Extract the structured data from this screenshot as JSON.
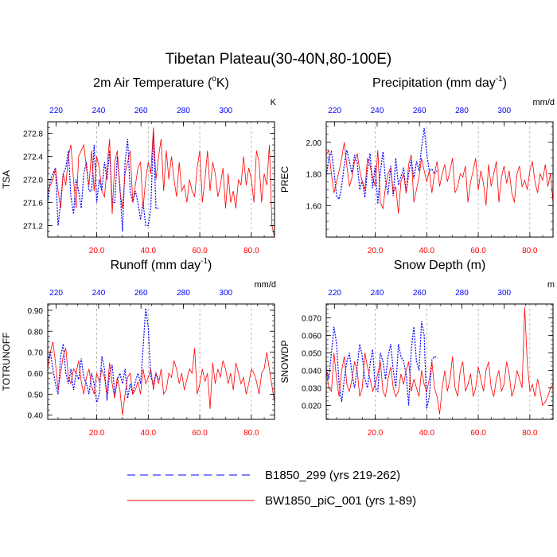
{
  "title": "Tibetan Plateau(30-40N,80-100E)",
  "colors": {
    "series_a": "#0000ff",
    "series_b": "#ff0000",
    "grid": "#aaaaaa"
  },
  "legend": [
    {
      "label": "B1850_299 (yrs 219-262)",
      "style": "dashed",
      "color": "#0000ff"
    },
    {
      "label": "BW1850_piC_001 (yrs 1-89)",
      "style": "solid",
      "color": "#ff0000"
    }
  ],
  "chart_data": [
    {
      "type": "line",
      "title": "2m Air Temperature (",
      "title_sup": "o",
      "title_tail": "K)",
      "ylabel": "TSA",
      "top_unit": "K",
      "ylim": [
        271.0,
        273.0
      ],
      "yticks": [
        "271.2",
        "271.6",
        "272.0",
        "272.4",
        "272.8"
      ],
      "xlim": [
        1,
        89
      ],
      "xticks": [
        "20.0",
        "40.0",
        "60.0",
        "80.0"
      ],
      "top_ticks": [
        "220",
        "240",
        "260",
        "280",
        "300"
      ],
      "series": [
        {
          "label_ref": 0,
          "x_start": 1,
          "values": [
            271.6,
            272.0,
            272.1,
            272.2,
            271.2,
            271.6,
            272.1,
            272.2,
            272.5,
            271.7,
            271.4,
            272.0,
            271.8,
            271.5,
            272.1,
            272.3,
            271.8,
            271.8,
            272.6,
            271.6,
            272.0,
            271.8,
            272.3,
            272.0,
            272.5,
            271.6,
            271.6,
            272.4,
            271.9,
            271.1,
            272.3,
            272.7,
            271.8,
            271.6,
            271.8,
            271.6,
            271.3,
            271.6,
            271.2,
            271.2,
            271.5,
            272.8,
            271.5,
            271.5
          ]
        },
        {
          "label_ref": 1,
          "x_start": 1,
          "values": [
            271.8,
            271.9,
            272.0,
            272.2,
            271.8,
            271.5,
            272.1,
            271.9,
            272.4,
            272.6,
            272.0,
            271.5,
            272.4,
            272.5,
            272.6,
            272.2,
            271.9,
            272.5,
            271.8,
            272.4,
            272.2,
            271.8,
            271.7,
            272.2,
            272.7,
            271.4,
            272.3,
            272.5,
            271.8,
            271.5,
            272.1,
            272.3,
            272.5,
            271.6,
            271.9,
            272.2,
            272.3,
            271.5,
            272.0,
            272.3,
            272.1,
            272.9,
            272.0,
            272.4,
            272.7,
            271.8,
            272.5,
            272.0,
            272.4,
            272.0,
            271.7,
            272.3,
            271.8,
            271.9,
            271.6,
            272.0,
            271.8,
            271.7,
            272.2,
            272.5,
            271.6,
            272.0,
            272.5,
            271.8,
            272.3,
            272.1,
            271.7,
            271.9,
            272.2,
            271.5,
            272.1,
            271.6,
            271.8,
            271.5,
            272.0,
            271.9,
            272.4,
            271.9,
            272.2,
            272.0,
            271.6,
            272.5,
            272.3,
            271.6,
            272.1,
            271.9,
            272.6,
            271.2,
            271.0
          ]
        }
      ]
    },
    {
      "type": "line",
      "title": "Precipitation (mm day",
      "title_sup": "-1",
      "title_tail": ")",
      "ylabel": "PREC",
      "top_unit": "mm/d",
      "ylim": [
        1.4,
        2.13
      ],
      "yticks": [
        "1.60",
        "1.80",
        "2.00"
      ],
      "xlim": [
        1,
        89
      ],
      "xticks": [
        "20.0",
        "40.0",
        "60.0",
        "80.0"
      ],
      "top_ticks": [
        "220",
        "240",
        "260",
        "280",
        "300"
      ],
      "series": [
        {
          "label_ref": 0,
          "x_start": 1,
          "values": [
            1.78,
            1.9,
            1.94,
            1.82,
            1.66,
            1.64,
            1.72,
            1.86,
            1.95,
            1.88,
            1.8,
            1.92,
            1.87,
            1.7,
            1.76,
            1.65,
            1.83,
            1.93,
            1.71,
            1.85,
            1.61,
            1.81,
            1.94,
            1.76,
            1.67,
            1.85,
            1.66,
            1.9,
            1.73,
            1.78,
            1.84,
            1.68,
            1.8,
            1.89,
            1.77,
            1.88,
            1.82,
            1.97,
            2.09,
            1.93,
            1.82,
            1.83,
            1.8,
            1.82
          ]
        },
        {
          "label_ref": 1,
          "x_start": 1,
          "values": [
            1.92,
            1.95,
            1.8,
            1.68,
            1.75,
            1.82,
            1.9,
            2.0,
            1.85,
            1.72,
            1.78,
            1.88,
            1.93,
            1.82,
            1.75,
            1.7,
            1.9,
            1.85,
            1.78,
            1.72,
            1.95,
            1.62,
            1.58,
            1.72,
            1.8,
            1.84,
            1.68,
            1.72,
            1.55,
            1.75,
            1.8,
            1.68,
            1.86,
            1.92,
            1.62,
            1.7,
            1.78,
            1.9,
            1.82,
            1.75,
            1.82,
            1.68,
            1.8,
            1.88,
            1.72,
            1.8,
            1.86,
            1.75,
            1.82,
            1.9,
            1.68,
            1.72,
            1.8,
            1.78,
            1.85,
            1.62,
            1.75,
            1.82,
            1.9,
            1.7,
            1.82,
            1.74,
            1.6,
            1.86,
            1.72,
            1.8,
            1.88,
            1.62,
            1.78,
            1.85,
            1.74,
            1.82,
            1.68,
            1.62,
            1.8,
            1.85,
            1.72,
            1.76,
            1.7,
            1.82,
            1.88,
            1.75,
            1.68,
            1.8,
            1.76,
            1.86,
            1.72,
            1.8,
            1.62
          ]
        }
      ]
    },
    {
      "type": "line",
      "title": "Runoff (mm day",
      "title_sup": "-1",
      "title_tail": ")",
      "ylabel": "TOTRUNOFF",
      "top_unit": "mm/d",
      "ylim": [
        0.38,
        0.93
      ],
      "yticks": [
        "0.40",
        "0.50",
        "0.60",
        "0.70",
        "0.80",
        "0.90"
      ],
      "xlim": [
        1,
        89
      ],
      "xticks": [
        "20.0",
        "40.0",
        "60.0",
        "80.0"
      ],
      "top_ticks": [
        "220",
        "240",
        "260",
        "280",
        "300"
      ],
      "series": [
        {
          "label_ref": 0,
          "x_start": 1,
          "values": [
            0.66,
            0.7,
            0.62,
            0.55,
            0.5,
            0.68,
            0.74,
            0.6,
            0.55,
            0.62,
            0.52,
            0.6,
            0.57,
            0.67,
            0.58,
            0.55,
            0.5,
            0.6,
            0.55,
            0.46,
            0.5,
            0.68,
            0.62,
            0.47,
            0.6,
            0.64,
            0.5,
            0.56,
            0.6,
            0.55,
            0.62,
            0.48,
            0.55,
            0.5,
            0.56,
            0.6,
            0.55,
            0.72,
            0.91,
            0.82,
            0.58,
            0.55,
            0.6,
            0.57
          ]
        },
        {
          "label_ref": 1,
          "x_start": 1,
          "values": [
            0.62,
            0.7,
            0.75,
            0.65,
            0.52,
            0.6,
            0.68,
            0.72,
            0.58,
            0.55,
            0.62,
            0.6,
            0.66,
            0.56,
            0.5,
            0.58,
            0.62,
            0.54,
            0.5,
            0.6,
            0.56,
            0.62,
            0.58,
            0.5,
            0.65,
            0.55,
            0.48,
            0.58,
            0.52,
            0.4,
            0.5,
            0.58,
            0.6,
            0.5,
            0.52,
            0.56,
            0.5,
            0.62,
            0.55,
            0.58,
            0.62,
            0.52,
            0.6,
            0.55,
            0.62,
            0.5,
            0.52,
            0.6,
            0.58,
            0.66,
            0.62,
            0.55,
            0.6,
            0.52,
            0.57,
            0.62,
            0.6,
            0.72,
            0.5,
            0.55,
            0.62,
            0.56,
            0.6,
            0.43,
            0.65,
            0.55,
            0.62,
            0.58,
            0.66,
            0.62,
            0.55,
            0.6,
            0.52,
            0.65,
            0.6,
            0.55,
            0.58,
            0.5,
            0.55,
            0.62,
            0.6,
            0.56,
            0.5,
            0.6,
            0.62,
            0.7,
            0.62,
            0.54,
            0.46
          ]
        }
      ]
    },
    {
      "type": "line",
      "title": "Snow Depth (m)",
      "ylabel": "SNOWDP",
      "top_unit": "m",
      "ylim": [
        0.012,
        0.078
      ],
      "yticks": [
        "0.020",
        "0.030",
        "0.040",
        "0.050",
        "0.060",
        "0.070"
      ],
      "xlim": [
        1,
        89
      ],
      "xticks": [
        "20.0",
        "40.0",
        "60.0",
        "80.0"
      ],
      "top_ticks": [
        "220",
        "240",
        "260",
        "280",
        "300"
      ],
      "series": [
        {
          "label_ref": 0,
          "x_start": 1,
          "values": [
            0.042,
            0.035,
            0.05,
            0.065,
            0.055,
            0.032,
            0.022,
            0.035,
            0.045,
            0.05,
            0.038,
            0.03,
            0.042,
            0.055,
            0.048,
            0.035,
            0.03,
            0.044,
            0.052,
            0.03,
            0.028,
            0.05,
            0.045,
            0.035,
            0.048,
            0.055,
            0.04,
            0.03,
            0.055,
            0.048,
            0.045,
            0.038,
            0.02,
            0.052,
            0.065,
            0.045,
            0.04,
            0.068,
            0.06,
            0.018,
            0.025,
            0.046,
            0.048,
            0.047
          ]
        },
        {
          "label_ref": 1,
          "x_start": 1,
          "values": [
            0.04,
            0.03,
            0.028,
            0.05,
            0.035,
            0.025,
            0.04,
            0.048,
            0.032,
            0.028,
            0.035,
            0.045,
            0.04,
            0.025,
            0.03,
            0.05,
            0.042,
            0.035,
            0.028,
            0.032,
            0.038,
            0.045,
            0.028,
            0.025,
            0.035,
            0.042,
            0.03,
            0.025,
            0.028,
            0.038,
            0.032,
            0.04,
            0.045,
            0.028,
            0.035,
            0.03,
            0.025,
            0.04,
            0.032,
            0.028,
            0.035,
            0.045,
            0.03,
            0.025,
            0.015,
            0.03,
            0.04,
            0.028,
            0.035,
            0.048,
            0.03,
            0.025,
            0.04,
            0.045,
            0.028,
            0.032,
            0.038,
            0.025,
            0.03,
            0.042,
            0.035,
            0.028,
            0.04,
            0.045,
            0.03,
            0.025,
            0.035,
            0.04,
            0.028,
            0.032,
            0.045,
            0.038,
            0.025,
            0.03,
            0.04,
            0.035,
            0.03,
            0.076,
            0.045,
            0.028,
            0.032,
            0.025,
            0.035,
            0.028,
            0.02,
            0.022,
            0.025,
            0.03,
            0.032
          ]
        }
      ]
    }
  ]
}
